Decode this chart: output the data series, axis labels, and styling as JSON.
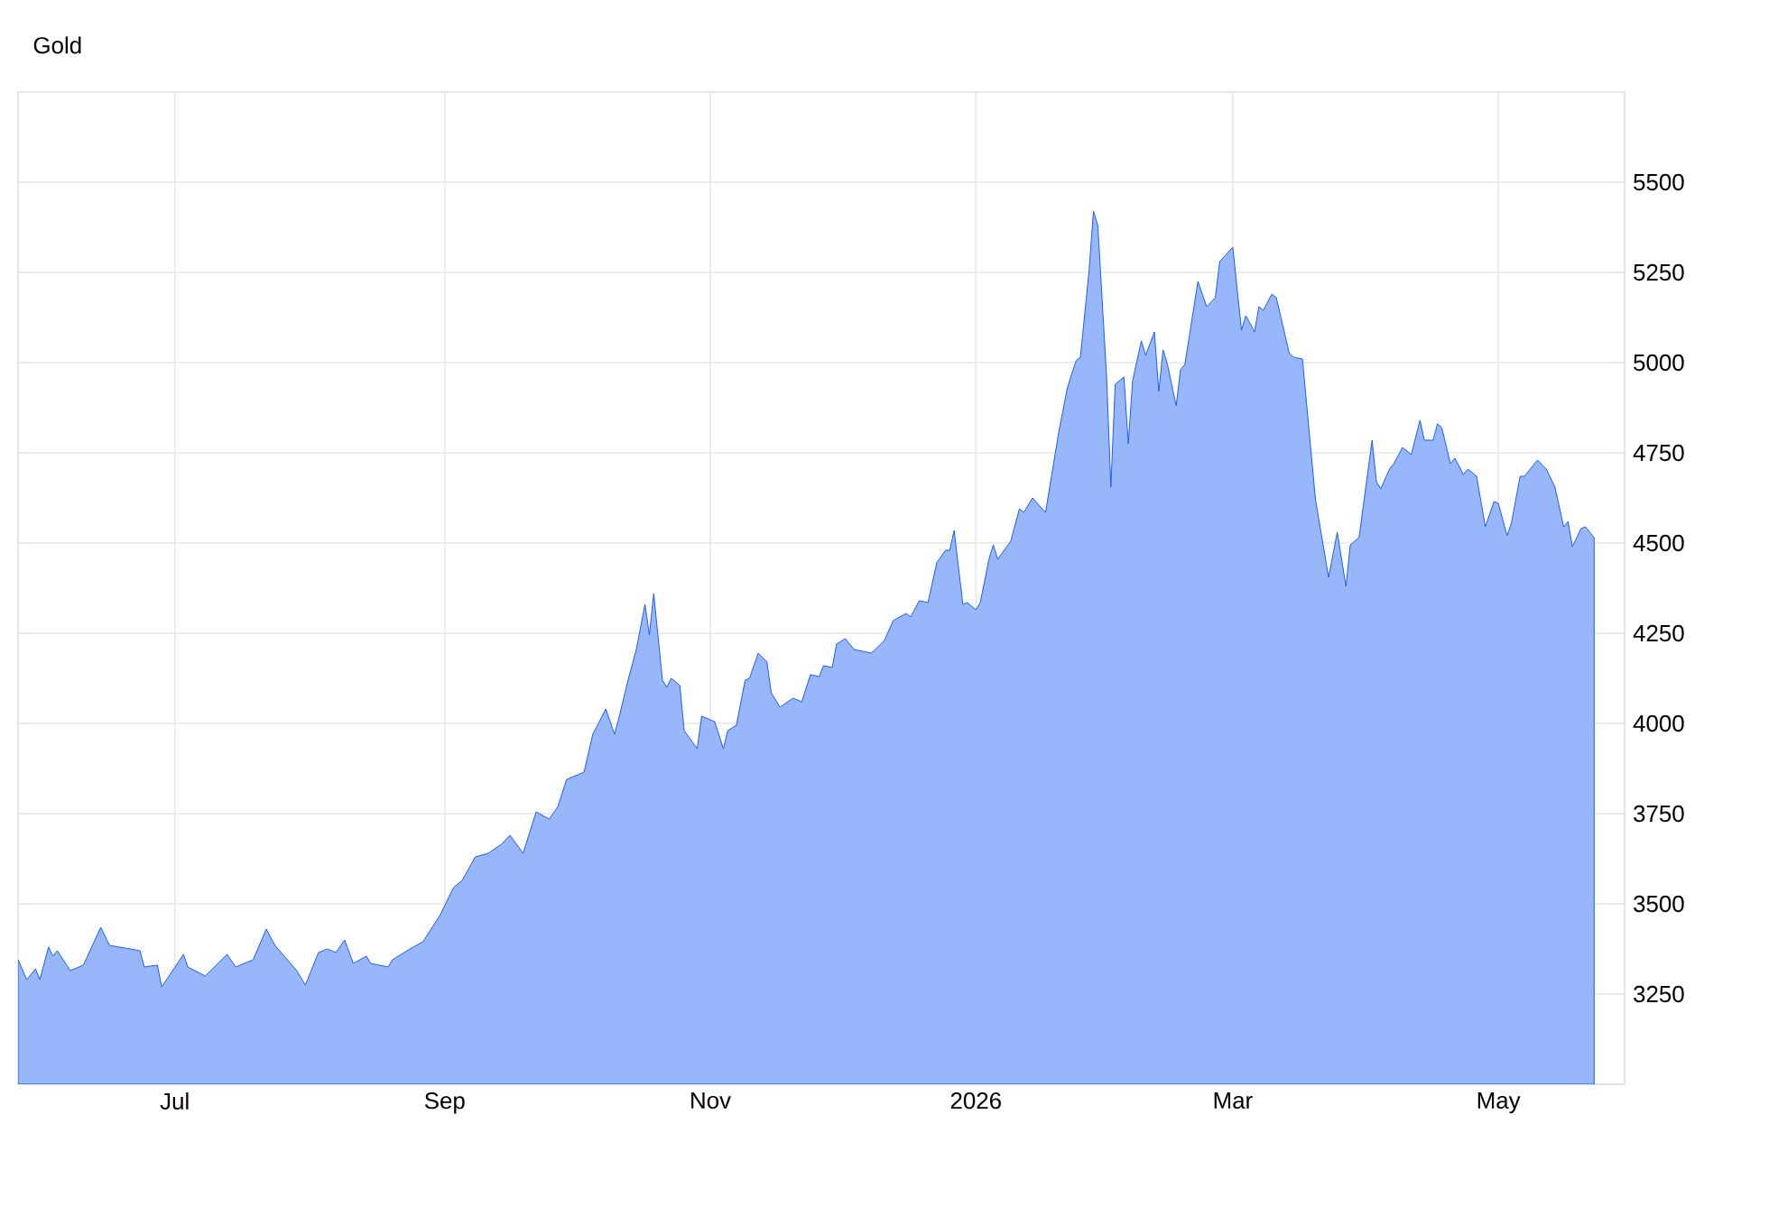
{
  "chart_data": {
    "type": "area",
    "title": "Gold",
    "x": [
      "2025-05-26",
      "2025-05-28",
      "2025-05-30",
      "2025-05-31",
      "2025-06-02",
      "2025-06-03",
      "2025-06-04",
      "2025-06-07",
      "2025-06-10",
      "2025-06-14",
      "2025-06-16",
      "2025-06-23",
      "2025-06-24",
      "2025-06-27",
      "2025-06-28",
      "2025-07-03",
      "2025-07-04",
      "2025-07-08",
      "2025-07-13",
      "2025-07-15",
      "2025-07-19",
      "2025-07-22",
      "2025-07-24",
      "2025-07-29",
      "2025-07-31",
      "2025-08-03",
      "2025-08-05",
      "2025-08-07",
      "2025-08-09",
      "2025-08-11",
      "2025-08-14",
      "2025-08-15",
      "2025-08-19",
      "2025-08-20",
      "2025-08-24",
      "2025-08-27",
      "2025-08-31",
      "2025-09-03",
      "2025-09-05",
      "2025-09-08",
      "2025-09-11",
      "2025-09-14",
      "2025-09-16",
      "2025-09-19",
      "2025-09-22",
      "2025-09-25",
      "2025-09-27",
      "2025-09-29",
      "2025-10-03",
      "2025-10-05",
      "2025-10-08",
      "2025-10-10",
      "2025-10-11",
      "2025-10-13",
      "2025-10-15",
      "2025-10-17",
      "2025-10-18",
      "2025-10-19",
      "2025-10-21",
      "2025-10-22",
      "2025-10-23",
      "2025-10-25",
      "2025-10-26",
      "2025-10-29",
      "2025-10-30",
      "2025-11-02",
      "2025-11-04",
      "2025-11-05",
      "2025-11-07",
      "2025-11-09",
      "2025-11-10",
      "2025-11-12",
      "2025-11-14",
      "2025-11-15",
      "2025-11-17",
      "2025-11-20",
      "2025-11-22",
      "2025-11-24",
      "2025-11-26",
      "2025-11-27",
      "2025-11-29",
      "2025-11-30",
      "2025-12-02",
      "2025-12-04",
      "2025-12-08",
      "2025-12-11",
      "2025-12-13",
      "2025-12-16",
      "2025-12-17",
      "2025-12-19",
      "2025-12-21",
      "2025-12-23",
      "2025-12-25",
      "2025-12-26",
      "2025-12-27",
      "2025-12-29",
      "2025-12-30",
      "2026-01-01",
      "2026-01-02",
      "2026-01-04",
      "2026-01-05",
      "2026-01-06",
      "2026-01-09",
      "2026-01-11",
      "2026-01-12",
      "2026-01-14",
      "2026-01-17",
      "2026-01-20",
      "2026-01-22",
      "2026-01-24",
      "2026-01-25",
      "2026-01-27",
      "2026-01-28",
      "2026-01-29",
      "2026-01-31",
      "2026-02-01",
      "2026-02-02",
      "2026-02-04",
      "2026-02-05",
      "2026-02-06",
      "2026-02-08",
      "2026-02-09",
      "2026-02-11",
      "2026-02-12",
      "2026-02-13",
      "2026-02-14",
      "2026-02-16",
      "2026-02-17",
      "2026-02-18",
      "2026-02-21",
      "2026-02-23",
      "2026-02-25",
      "2026-02-26",
      "2026-03-01",
      "2026-03-03",
      "2026-03-04",
      "2026-03-06",
      "2026-03-07",
      "2026-03-08",
      "2026-03-10",
      "2026-03-11",
      "2026-03-14",
      "2026-03-15",
      "2026-03-17",
      "2026-03-20",
      "2026-03-23",
      "2026-03-25",
      "2026-03-27",
      "2026-03-28",
      "2026-03-30",
      "2026-04-02",
      "2026-04-03",
      "2026-04-04",
      "2026-04-06",
      "2026-04-07",
      "2026-04-09",
      "2026-04-11",
      "2026-04-13",
      "2026-04-14",
      "2026-04-16",
      "2026-04-17",
      "2026-04-18",
      "2026-04-20",
      "2026-04-21",
      "2026-04-23",
      "2026-04-24",
      "2026-04-26",
      "2026-04-28",
      "2026-04-30",
      "2026-05-01",
      "2026-05-03",
      "2026-05-04",
      "2026-05-06",
      "2026-05-07",
      "2026-05-10",
      "2026-05-12",
      "2026-05-14",
      "2026-05-16",
      "2026-05-17",
      "2026-05-18",
      "2026-05-20",
      "2026-05-21",
      "2026-05-23"
    ],
    "series": [
      {
        "color": "#1a5cf5",
        "values": [
          3345,
          3290,
          3320,
          3290,
          3380,
          3355,
          3370,
          3315,
          3330,
          3435,
          3385,
          3370,
          3325,
          3330,
          3270,
          3360,
          3325,
          3300,
          3360,
          3325,
          3345,
          3430,
          3385,
          3315,
          3275,
          3365,
          3375,
          3365,
          3400,
          3335,
          3355,
          3335,
          3325,
          3345,
          3375,
          3395,
          3470,
          3545,
          3565,
          3630,
          3640,
          3665,
          3690,
          3640,
          3755,
          3735,
          3770,
          3845,
          3865,
          3970,
          4040,
          3970,
          4015,
          4115,
          4205,
          4330,
          4245,
          4360,
          4120,
          4100,
          4125,
          4105,
          3980,
          3930,
          4020,
          4005,
          3930,
          3980,
          3995,
          4120,
          4125,
          4195,
          4170,
          4085,
          4045,
          4070,
          4060,
          4135,
          4130,
          4160,
          4155,
          4220,
          4235,
          4205,
          4195,
          4230,
          4285,
          4305,
          4295,
          4340,
          4335,
          4445,
          4480,
          4480,
          4535,
          4330,
          4335,
          4315,
          4335,
          4455,
          4495,
          4455,
          4505,
          4595,
          4585,
          4625,
          4585,
          4805,
          4930,
          5005,
          5015,
          5255,
          5420,
          5380,
          4965,
          4655,
          4940,
          4960,
          4775,
          4950,
          5060,
          5020,
          5085,
          4920,
          5035,
          4995,
          4880,
          4980,
          4995,
          5225,
          5155,
          5180,
          5280,
          5320,
          5090,
          5130,
          5085,
          5155,
          5145,
          5190,
          5180,
          5025,
          5015,
          5010,
          4620,
          4405,
          4530,
          4380,
          4495,
          4515,
          4785,
          4670,
          4650,
          4705,
          4720,
          4765,
          4745,
          4840,
          4785,
          4785,
          4830,
          4820,
          4720,
          4735,
          4690,
          4705,
          4685,
          4545,
          4615,
          4610,
          4520,
          4555,
          4685,
          4685,
          4730,
          4705,
          4655,
          4545,
          4560,
          4490,
          4540,
          4545,
          4515
        ]
      }
    ],
    "xlim": [
      "2025-05-26",
      "2026-05-30"
    ],
    "xticks": [
      {
        "value": "2025-07-01",
        "label": "Jul"
      },
      {
        "value": "2025-09-01",
        "label": "Sep"
      },
      {
        "value": "2025-11-01",
        "label": "Nov"
      },
      {
        "value": "2026-01-01",
        "label": "2026"
      },
      {
        "value": "2026-03-01",
        "label": "Mar"
      },
      {
        "value": "2026-05-01",
        "label": "May"
      }
    ],
    "ylim": [
      3000,
      5750
    ],
    "yticks": [
      3250,
      3500,
      3750,
      4000,
      4250,
      4500,
      4750,
      5000,
      5250,
      5500
    ],
    "grid": true
  }
}
